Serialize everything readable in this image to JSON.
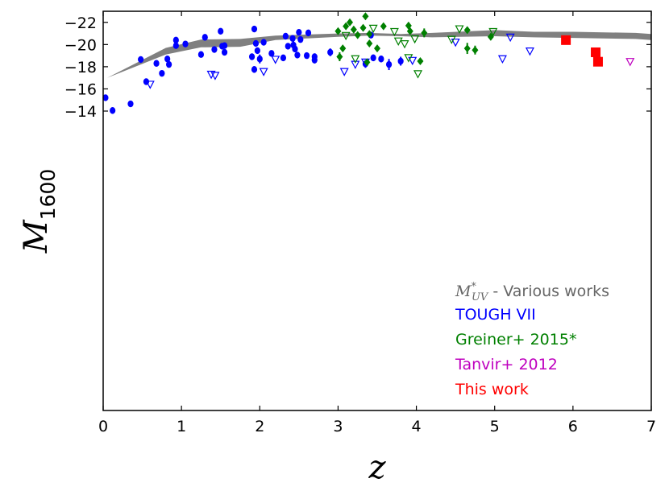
{
  "chart_data": {
    "type": "scatter",
    "xlabel": "z",
    "ylabel_main": "M",
    "ylabel_sub": "1600",
    "xlim": [
      0,
      7
    ],
    "ylim": [
      13,
      -23
    ],
    "x_ticks": [
      0,
      1,
      2,
      3,
      4,
      5,
      6,
      7
    ],
    "x_tick_labels": [
      "0",
      "1",
      "2",
      "3",
      "4",
      "5",
      "6",
      "7"
    ],
    "y_ticks": [
      -22,
      -20,
      -18,
      -16,
      -14
    ],
    "y_tick_labels": [
      "−22",
      "−20",
      "−18",
      "−16",
      "−14"
    ],
    "band": {
      "name": "M*UV - Various works",
      "color": "#808080",
      "upper": [
        [
          0.05,
          -17.0
        ],
        [
          0.8,
          -19.7
        ],
        [
          1.25,
          -20.45
        ],
        [
          1.75,
          -20.5
        ],
        [
          2.2,
          -20.8
        ],
        [
          3,
          -21.0
        ],
        [
          3.4,
          -21.05
        ],
        [
          3.8,
          -20.95
        ],
        [
          4.2,
          -21.05
        ],
        [
          5,
          -21.3
        ],
        [
          5.5,
          -21.15
        ],
        [
          6,
          -21.15
        ],
        [
          6.8,
          -21.05
        ],
        [
          7,
          -20.95
        ]
      ],
      "lower": [
        [
          7,
          -20.4
        ],
        [
          6.8,
          -20.5
        ],
        [
          6,
          -20.6
        ],
        [
          5.5,
          -20.65
        ],
        [
          5,
          -20.75
        ],
        [
          4.2,
          -20.65
        ],
        [
          3.8,
          -20.75
        ],
        [
          3.4,
          -20.8
        ],
        [
          3,
          -20.7
        ],
        [
          2.2,
          -20.4
        ],
        [
          1.75,
          -19.8
        ],
        [
          1.25,
          -19.75
        ],
        [
          0.8,
          -19.1
        ],
        [
          0.05,
          -17.0
        ]
      ]
    },
    "series": [
      {
        "name": "TOUGH VII",
        "color": "#0000ff",
        "detections": [
          {
            "z": 0.03,
            "M": -15.2,
            "err": 0.1
          },
          {
            "z": 0.12,
            "M": -14.05,
            "err": 0.3
          },
          {
            "z": 0.35,
            "M": -14.65,
            "err": 0.12
          },
          {
            "z": 0.48,
            "M": -18.65,
            "err": 0.2
          },
          {
            "z": 0.55,
            "M": -16.65,
            "err": 0.12
          },
          {
            "z": 0.68,
            "M": -18.3,
            "err": 0.1
          },
          {
            "z": 0.75,
            "M": -17.4,
            "err": 0.1
          },
          {
            "z": 0.82,
            "M": -18.7,
            "err": 0.15
          },
          {
            "z": 0.84,
            "M": -18.2,
            "err": 0.1
          },
          {
            "z": 0.93,
            "M": -20.4,
            "err": 0.1
          },
          {
            "z": 0.93,
            "M": -19.9,
            "err": 0.1
          },
          {
            "z": 1.05,
            "M": -20.05,
            "err": 0.1
          },
          {
            "z": 1.25,
            "M": -19.1,
            "err": 0.15
          },
          {
            "z": 1.3,
            "M": -20.65,
            "err": 0.1
          },
          {
            "z": 1.42,
            "M": -19.55,
            "err": 0.1
          },
          {
            "z": 1.5,
            "M": -21.2,
            "err": 0.1
          },
          {
            "z": 1.52,
            "M": -19.85,
            "err": 0.15
          },
          {
            "z": 1.55,
            "M": -19.9,
            "err": 0.1
          },
          {
            "z": 1.55,
            "M": -19.3,
            "err": 0.1
          },
          {
            "z": 1.9,
            "M": -18.9,
            "err": 0.2
          },
          {
            "z": 1.93,
            "M": -21.4,
            "err": 0.1
          },
          {
            "z": 1.93,
            "M": -17.75,
            "err": 0.3
          },
          {
            "z": 1.95,
            "M": -20.1,
            "err": 0.2
          },
          {
            "z": 1.97,
            "M": -19.45,
            "err": 0.25
          },
          {
            "z": 2.0,
            "M": -18.7,
            "err": 0.4
          },
          {
            "z": 2.05,
            "M": -20.2,
            "err": 0.15
          },
          {
            "z": 2.15,
            "M": -19.2,
            "err": 0.2
          },
          {
            "z": 2.3,
            "M": -18.8,
            "err": 0.2
          },
          {
            "z": 2.33,
            "M": -20.75,
            "err": 0.1
          },
          {
            "z": 2.36,
            "M": -19.85,
            "err": 0.15
          },
          {
            "z": 2.42,
            "M": -20.55,
            "err": 0.15
          },
          {
            "z": 2.43,
            "M": -19.95,
            "err": 0.4
          },
          {
            "z": 2.45,
            "M": -19.6,
            "err": 0.3
          },
          {
            "z": 2.48,
            "M": -19.05,
            "err": 0.25
          },
          {
            "z": 2.5,
            "M": -21.1,
            "err": 0.1
          },
          {
            "z": 2.52,
            "M": -20.45,
            "err": 0.2
          },
          {
            "z": 2.6,
            "M": -19.0,
            "err": 0.1
          },
          {
            "z": 2.62,
            "M": -21.05,
            "err": 0.15
          },
          {
            "z": 2.7,
            "M": -18.9,
            "err": 0.3
          },
          {
            "z": 2.7,
            "M": -18.6,
            "err": 0.3
          },
          {
            "z": 2.9,
            "M": -19.3,
            "err": 0.35
          },
          {
            "z": 3.35,
            "M": -18.25,
            "err": 0.35
          },
          {
            "z": 3.42,
            "M": -20.85,
            "err": 0.1
          },
          {
            "z": 3.45,
            "M": -18.8,
            "err": 0.3
          },
          {
            "z": 3.55,
            "M": -18.7,
            "err": 0.3
          },
          {
            "z": 3.65,
            "M": -18.2,
            "err": 0.5
          },
          {
            "z": 3.8,
            "M": -18.5,
            "err": 0.4
          }
        ],
        "limits": [
          {
            "z": 0.6,
            "M": -16.4
          },
          {
            "z": 1.38,
            "M": -17.3
          },
          {
            "z": 1.43,
            "M": -17.2
          },
          {
            "z": 2.05,
            "M": -17.55
          },
          {
            "z": 2.2,
            "M": -18.65
          },
          {
            "z": 3.08,
            "M": -17.55
          },
          {
            "z": 3.22,
            "M": -18.2
          },
          {
            "z": 3.35,
            "M": -18.4
          },
          {
            "z": 3.95,
            "M": -18.55
          },
          {
            "z": 4.5,
            "M": -20.2
          },
          {
            "z": 5.1,
            "M": -18.7
          },
          {
            "z": 5.2,
            "M": -20.65
          },
          {
            "z": 5.45,
            "M": -19.4
          }
        ]
      },
      {
        "name": "Greiner+ 2015*",
        "color": "#008000",
        "detections": [
          {
            "z": 3.0,
            "M": -21.2,
            "err": 0.2
          },
          {
            "z": 3.02,
            "M": -18.9,
            "err": 0.4
          },
          {
            "z": 3.06,
            "M": -19.65,
            "err": 0.1
          },
          {
            "z": 3.1,
            "M": -21.65,
            "err": 0.1
          },
          {
            "z": 3.15,
            "M": -22.0,
            "err": 0.1
          },
          {
            "z": 3.2,
            "M": -21.35,
            "err": 0.1
          },
          {
            "z": 3.25,
            "M": -20.85,
            "err": 0.1
          },
          {
            "z": 3.32,
            "M": -21.5,
            "err": 0.1
          },
          {
            "z": 3.35,
            "M": -22.55,
            "err": 0.1
          },
          {
            "z": 3.37,
            "M": -18.4,
            "err": 0.1
          },
          {
            "z": 3.4,
            "M": -20.95,
            "err": 0.2
          },
          {
            "z": 3.4,
            "M": -20.1,
            "err": 0.15
          },
          {
            "z": 3.5,
            "M": -19.65,
            "err": 0.1
          },
          {
            "z": 3.58,
            "M": -21.65,
            "err": 0.2
          },
          {
            "z": 3.9,
            "M": -21.7,
            "err": 0.3
          },
          {
            "z": 3.92,
            "M": -21.2,
            "err": 0.1
          },
          {
            "z": 4.05,
            "M": -18.5,
            "err": 0.1
          },
          {
            "z": 4.1,
            "M": -21.05,
            "err": 0.4
          },
          {
            "z": 4.65,
            "M": -21.3,
            "err": 0.1
          },
          {
            "z": 4.65,
            "M": -19.65,
            "err": 0.5
          },
          {
            "z": 4.75,
            "M": -19.5,
            "err": 0.4
          },
          {
            "z": 4.95,
            "M": -20.7,
            "err": 0.15
          }
        ],
        "limits": [
          {
            "z": 3.1,
            "M": -20.8
          },
          {
            "z": 3.22,
            "M": -18.7
          },
          {
            "z": 3.45,
            "M": -21.45
          },
          {
            "z": 3.72,
            "M": -21.15
          },
          {
            "z": 3.77,
            "M": -20.3
          },
          {
            "z": 3.85,
            "M": -20.05
          },
          {
            "z": 3.9,
            "M": -18.8
          },
          {
            "z": 3.98,
            "M": -20.5
          },
          {
            "z": 4.02,
            "M": -17.35
          },
          {
            "z": 4.45,
            "M": -20.45
          },
          {
            "z": 4.55,
            "M": -21.4
          },
          {
            "z": 4.98,
            "M": -21.15
          }
        ]
      },
      {
        "name": "Tanvir+ 2012",
        "color": "#bf00bf",
        "detections": [],
        "limits": [
          {
            "z": 6.73,
            "M": -18.45
          }
        ]
      },
      {
        "name": "This work",
        "color": "#ff0000",
        "detections": [
          {
            "z": 5.91,
            "M": -20.4,
            "err": 0.3
          },
          {
            "z": 6.29,
            "M": -19.3,
            "err": 0.35
          },
          {
            "z": 6.32,
            "M": -18.45,
            "err": 0.4
          }
        ],
        "limits": []
      }
    ],
    "legend": {
      "position": "bottom-right",
      "entries": [
        {
          "prefix": "M",
          "sup": "*",
          "sub": "UV",
          "text": " - Various works",
          "color": "#666666"
        },
        {
          "text": "TOUGH VII",
          "color": "#0000ff"
        },
        {
          "text": "Greiner+ 2015*",
          "color": "#008000"
        },
        {
          "text": "Tanvir+ 2012",
          "color": "#bf00bf"
        },
        {
          "text": "This work",
          "color": "#ff0000"
        }
      ]
    }
  }
}
